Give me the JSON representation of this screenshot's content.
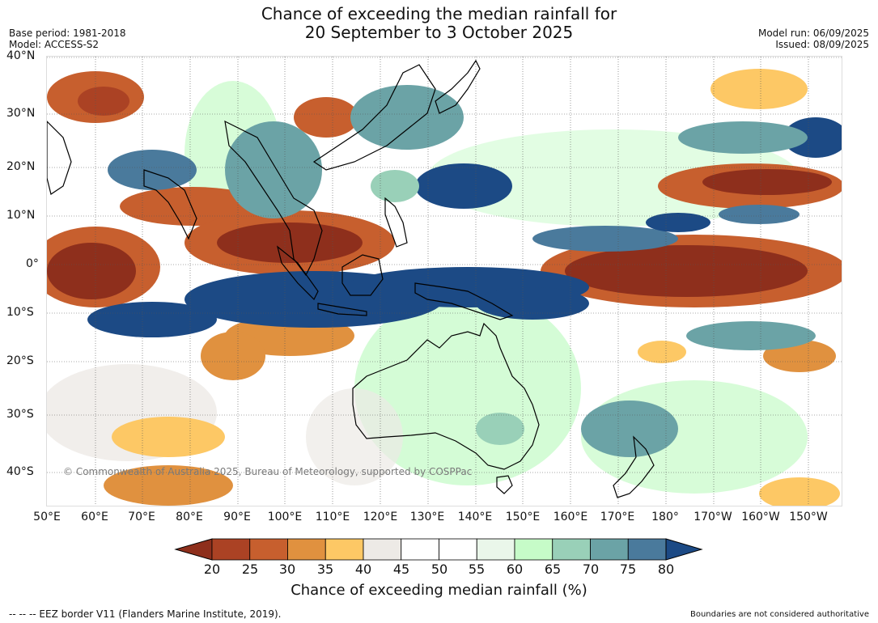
{
  "header": {
    "title_line1": "Chance of exceeding the median rainfall for",
    "title_line2": "20 September to 3 October 2025",
    "base_period": "Base period: 1981-2018",
    "model": "Model: ACCESS-S2",
    "model_run": "Model run: 06/09/2025",
    "issued": "Issued: 08/09/2025"
  },
  "map": {
    "lat_labels": [
      "40°N",
      "30°N",
      "20°N",
      "10°N",
      "0°",
      "10°S",
      "20°S",
      "30°S",
      "40°S"
    ],
    "lon_labels": [
      "50°E",
      "60°E",
      "70°E",
      "80°E",
      "90°E",
      "100°E",
      "110°E",
      "120°E",
      "130°E",
      "140°E",
      "150°E",
      "160°E",
      "170°E",
      "180°",
      "170°W",
      "160°W",
      "150°W"
    ],
    "copyright": "© Commonwealth of Australia 2025, Bureau of Meteorology, supported by COSPPac"
  },
  "colorbar": {
    "ticks": [
      "20",
      "25",
      "30",
      "35",
      "40",
      "45",
      "50",
      "55",
      "60",
      "65",
      "70",
      "75",
      "80"
    ],
    "title": "Chance of exceeding median rainfall (%)",
    "colors": [
      "#8e2f1c",
      "#ab4224",
      "#c75f2e",
      "#e0913f",
      "#fdc865",
      "#edeae6",
      "#ffffff",
      "#ffffff",
      "#eaf6ea",
      "#c6fbc8",
      "#99d0b8",
      "#6ba3a6",
      "#4a7a9c",
      "#1c4a85"
    ]
  },
  "footer": {
    "eez": "--  --  -- EEZ border V11 (Flanders Marine Institute, 2019).",
    "disclaimer": "Boundaries are not considered authoritative"
  }
}
